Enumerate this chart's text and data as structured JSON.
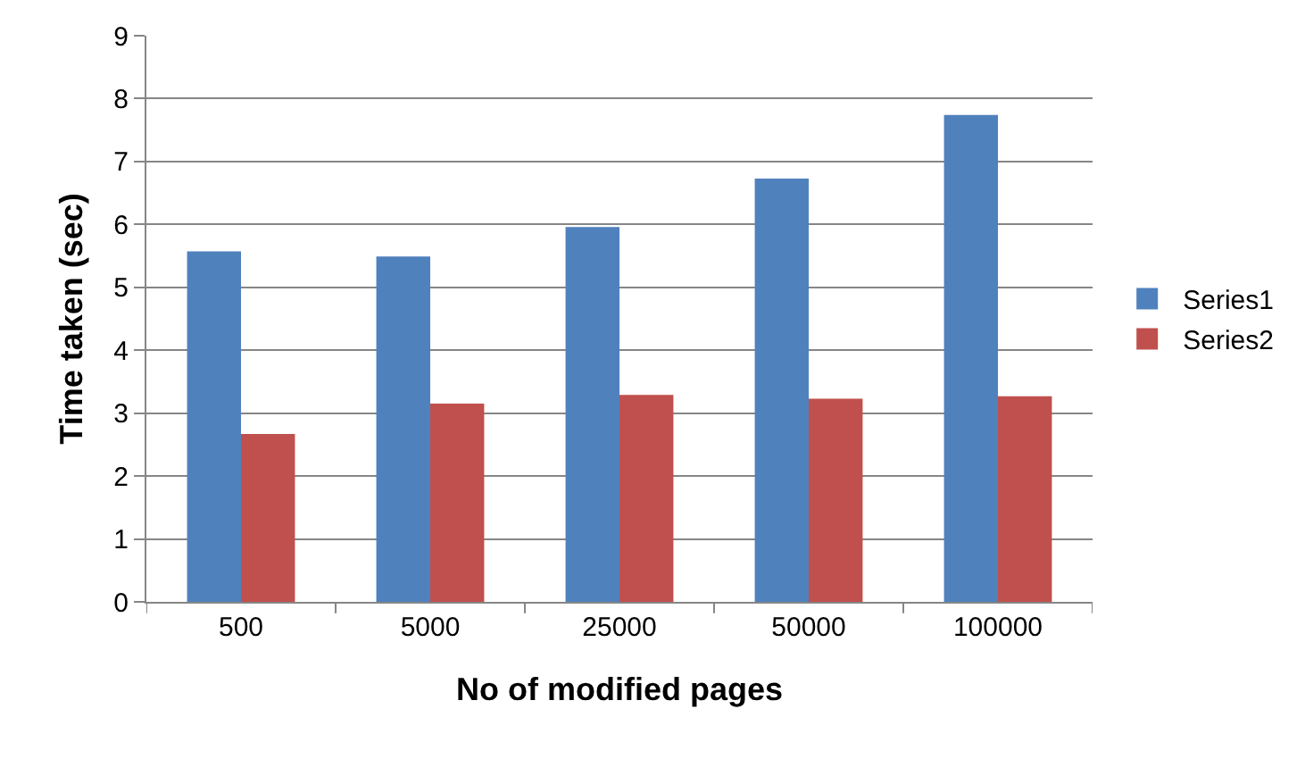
{
  "chart_data": {
    "type": "bar",
    "xlabel": "No of modified pages",
    "ylabel": "Time taken (sec)",
    "categories": [
      "500",
      "5000",
      "25000",
      "50000",
      "100000"
    ],
    "series": [
      {
        "name": "Series1",
        "color": "#4f81bd",
        "values": [
          5.57,
          5.49,
          5.96,
          6.73,
          7.74
        ]
      },
      {
        "name": "Series2",
        "color": "#c0504d",
        "values": [
          2.67,
          3.15,
          3.29,
          3.23,
          3.27
        ]
      }
    ],
    "ylim": [
      0,
      9
    ],
    "yticks": [
      0,
      1,
      2,
      3,
      4,
      5,
      6,
      7,
      8,
      9
    ],
    "grid": "y",
    "legend": "right"
  }
}
